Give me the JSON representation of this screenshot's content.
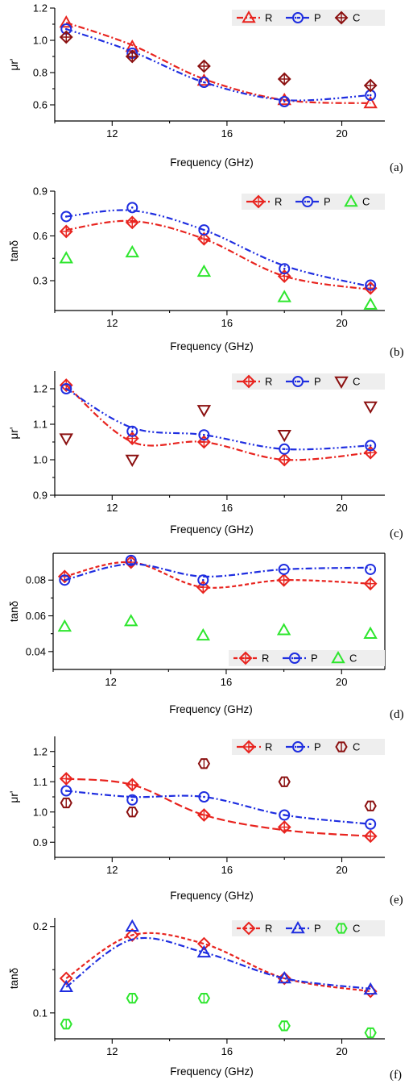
{
  "chart_data": [
    {
      "type": "line",
      "panel_label": "(a)",
      "xlabel": "Frequency (GHz)",
      "ylabel": "μr'",
      "xlim": [
        10,
        21.5
      ],
      "ylim": [
        0.5,
        1.2
      ],
      "xticks": [
        12,
        16,
        20
      ],
      "yticks": [
        0.6,
        0.8,
        1.0,
        1.2
      ],
      "ytick_labels": [
        "0.6",
        "0.8",
        "1.0",
        "1.2"
      ],
      "x": [
        10.4,
        12.7,
        15.2,
        18.0,
        21.0
      ],
      "legend_position": "top-right",
      "series": [
        {
          "name": "R",
          "values": [
            1.11,
            0.96,
            0.75,
            0.63,
            0.61
          ],
          "color": "#e8241f",
          "marker": "triangle",
          "dash": "8,3,2,3",
          "curve": [
            1.11,
            0.97,
            0.76,
            0.63,
            0.61
          ]
        },
        {
          "name": "P",
          "values": [
            1.07,
            0.92,
            0.74,
            0.62,
            0.66
          ],
          "color": "#1f2ee0",
          "marker": "circle",
          "dash": "8,3,2,3,2,3",
          "curve": [
            1.07,
            0.93,
            0.74,
            0.63,
            0.66
          ]
        },
        {
          "name": "C",
          "values": [
            1.02,
            0.9,
            0.84,
            0.76,
            0.72
          ],
          "color": "#8b1010",
          "marker": "diamond-plus"
        }
      ]
    },
    {
      "type": "line",
      "panel_label": "(b)",
      "xlabel": "Frequency (GHz)",
      "ylabel": "tanδ",
      "xlim": [
        10,
        21.5
      ],
      "ylim": [
        0.1,
        0.9
      ],
      "xticks": [
        12,
        16,
        20
      ],
      "yticks": [
        0.3,
        0.6,
        0.9
      ],
      "ytick_labels": [
        "0.3",
        "0.6",
        "0.9"
      ],
      "x": [
        10.4,
        12.7,
        15.2,
        18.0,
        21.0
      ],
      "legend_position": "top-right",
      "series": [
        {
          "name": "R",
          "values": [
            0.63,
            0.69,
            0.58,
            0.33,
            0.25
          ],
          "color": "#e8241f",
          "marker": "diamond-plus",
          "dash": "8,3,2,3",
          "curve": [
            0.64,
            0.7,
            0.58,
            0.33,
            0.24
          ]
        },
        {
          "name": "P",
          "values": [
            0.73,
            0.79,
            0.64,
            0.38,
            0.27
          ],
          "color": "#1f2ee0",
          "marker": "circle",
          "dash": "8,3,2,3,2,3",
          "curve": [
            0.73,
            0.77,
            0.64,
            0.4,
            0.26
          ]
        },
        {
          "name": "C",
          "values": [
            0.45,
            0.49,
            0.36,
            0.19,
            0.14
          ],
          "color": "#2ee62e",
          "marker": "triangle"
        }
      ]
    },
    {
      "type": "line",
      "panel_label": "(c)",
      "xlabel": "Frequency (GHz)",
      "ylabel": "μr'",
      "xlim": [
        10,
        21.5
      ],
      "ylim": [
        0.9,
        1.25
      ],
      "xticks": [
        12,
        16,
        20
      ],
      "yticks": [
        0.9,
        1.0,
        1.1,
        1.2
      ],
      "ytick_labels": [
        "0.9",
        "1.0",
        "1.1",
        "1.2"
      ],
      "x": [
        10.4,
        12.7,
        15.2,
        18.0,
        21.0
      ],
      "legend_position": "top-right",
      "series": [
        {
          "name": "R",
          "values": [
            1.21,
            1.06,
            1.05,
            1.0,
            1.02
          ],
          "color": "#e8241f",
          "marker": "diamond-plus",
          "dash": "8,3,2,3",
          "curve": [
            1.21,
            1.05,
            1.05,
            1.0,
            1.02
          ]
        },
        {
          "name": "P",
          "values": [
            1.2,
            1.08,
            1.07,
            1.03,
            1.04
          ],
          "color": "#1f2ee0",
          "marker": "circle",
          "dash": "8,3,2,3,2,3",
          "curve": [
            1.2,
            1.09,
            1.07,
            1.03,
            1.04
          ]
        },
        {
          "name": "C",
          "values": [
            1.06,
            1.0,
            1.14,
            1.07,
            1.15
          ],
          "color": "#8b1010",
          "marker": "triangle-down"
        }
      ]
    },
    {
      "type": "line",
      "panel_label": "(d)",
      "xlabel": "Frequency (GHz)",
      "ylabel": "tanδ",
      "xlim": [
        10,
        21.5
      ],
      "ylim": [
        0.03,
        0.095
      ],
      "xticks": [
        12,
        16,
        20
      ],
      "yticks": [
        0.04,
        0.06,
        0.08
      ],
      "ytick_labels": [
        "0.04",
        "0.06",
        "0.08"
      ],
      "x": [
        10.4,
        12.7,
        15.2,
        18.0,
        21.0
      ],
      "legend_position": "bottom-right",
      "series": [
        {
          "name": "R",
          "values": [
            0.082,
            0.09,
            0.076,
            0.08,
            0.078
          ],
          "color": "#e8241f",
          "marker": "diamond-plus",
          "dash": "5,3",
          "curve": [
            0.082,
            0.09,
            0.076,
            0.08,
            0.078
          ]
        },
        {
          "name": "P",
          "values": [
            0.08,
            0.091,
            0.08,
            0.086,
            0.086
          ],
          "color": "#1f2ee0",
          "marker": "circle",
          "dash": "8,3,2,3",
          "curve": [
            0.08,
            0.089,
            0.082,
            0.086,
            0.087
          ]
        },
        {
          "name": "C",
          "values": [
            0.054,
            0.057,
            0.049,
            0.052,
            0.05
          ],
          "color": "#2ee62e",
          "marker": "triangle"
        }
      ]
    },
    {
      "type": "line",
      "panel_label": "(e)",
      "xlabel": "Frequency (GHz)",
      "ylabel": "μr'",
      "xlim": [
        10,
        21.5
      ],
      "ylim": [
        0.85,
        1.25
      ],
      "xticks": [
        12,
        16,
        20
      ],
      "yticks": [
        0.9,
        1.0,
        1.1,
        1.2
      ],
      "ytick_labels": [
        "0.9",
        "1.0",
        "1.1",
        "1.2"
      ],
      "x": [
        10.4,
        12.7,
        15.2,
        18.0,
        21.0
      ],
      "legend_position": "top-right",
      "series": [
        {
          "name": "R",
          "values": [
            1.11,
            1.09,
            0.99,
            0.95,
            0.92
          ],
          "color": "#e8241f",
          "marker": "diamond-plus",
          "dash": "10,4",
          "curve": [
            1.11,
            1.09,
            0.99,
            0.94,
            0.92
          ]
        },
        {
          "name": "P",
          "values": [
            1.07,
            1.04,
            1.05,
            0.99,
            0.96
          ],
          "color": "#1f2ee0",
          "marker": "circle",
          "dash": "8,3,2,3",
          "curve": [
            1.07,
            1.05,
            1.05,
            0.99,
            0.96
          ]
        },
        {
          "name": "C",
          "values": [
            1.03,
            1.0,
            1.16,
            1.1,
            1.02
          ],
          "color": "#8b1010",
          "marker": "hexagon"
        }
      ]
    },
    {
      "type": "line",
      "panel_label": "(f)",
      "xlabel": "Frequency (GHz)",
      "ylabel": "tanδ",
      "xlim": [
        10,
        21.5
      ],
      "ylim": [
        0.07,
        0.21
      ],
      "xticks": [
        12,
        16,
        20
      ],
      "yticks": [
        0.1,
        0.2
      ],
      "ytick_labels": [
        "0.1",
        "0.2"
      ],
      "x": [
        10.4,
        12.7,
        15.2,
        18.0,
        21.0
      ],
      "legend_position": "top-right",
      "series": [
        {
          "name": "R",
          "values": [
            0.14,
            0.19,
            0.18,
            0.14,
            0.125
          ],
          "color": "#e8241f",
          "marker": "diamond",
          "dash": "5,3",
          "curve": [
            0.14,
            0.19,
            0.18,
            0.14,
            0.125
          ]
        },
        {
          "name": "P",
          "values": [
            0.13,
            0.2,
            0.17,
            0.14,
            0.127
          ],
          "color": "#1f2ee0",
          "marker": "triangle",
          "dash": "8,3,2,3",
          "curve": [
            0.13,
            0.185,
            0.17,
            0.14,
            0.128
          ]
        },
        {
          "name": "C",
          "values": [
            0.087,
            0.117,
            0.117,
            0.085,
            0.077
          ],
          "color": "#2ee62e",
          "marker": "hexagon"
        }
      ]
    }
  ]
}
